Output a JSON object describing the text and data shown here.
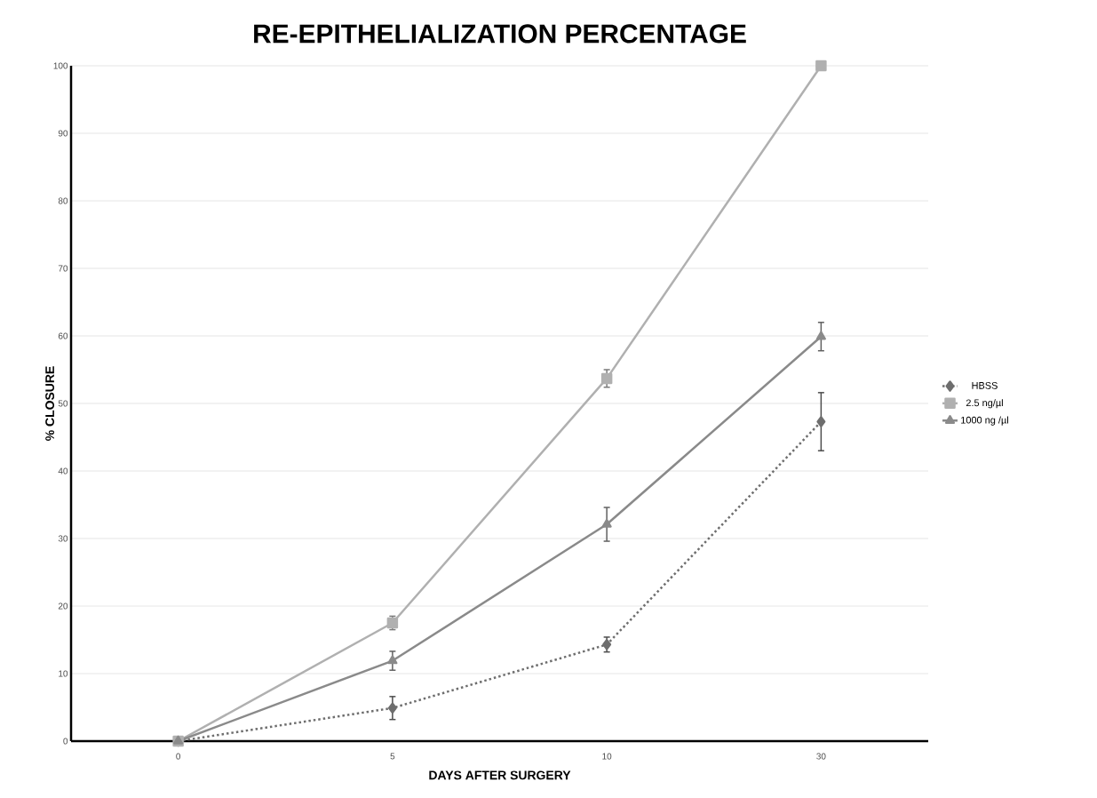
{
  "chart_data": {
    "type": "line",
    "title": "RE-EPITHELIALIZATION PERCENTAGE",
    "xlabel": "DAYS AFTER SURGERY",
    "ylabel": "% CLOSURE",
    "categories": [
      "0",
      "5",
      "10",
      "30"
    ],
    "ylim": [
      0,
      100
    ],
    "yticks": [
      0,
      10,
      20,
      30,
      40,
      50,
      60,
      70,
      80,
      90,
      100
    ],
    "grid": "y",
    "legend": "right",
    "series": [
      {
        "name": "HBSS",
        "color": "#6e6e6e",
        "marker": "diamond",
        "line_style": "dotted",
        "values": [
          0,
          4.9,
          14.3,
          47.3
        ],
        "errors": [
          null,
          1.7,
          1.1,
          4.3
        ]
      },
      {
        "name": "2.5 ng/µl",
        "color": "#b0b0b0",
        "marker": "square",
        "line_style": "solid",
        "values": [
          0,
          17.5,
          53.7,
          100
        ],
        "errors": [
          null,
          1.0,
          1.3,
          null
        ]
      },
      {
        "name": "1000 ng /µl",
        "color": "#8a8a8a",
        "marker": "triangle",
        "line_style": "solid",
        "values": [
          0,
          11.9,
          32.1,
          59.9
        ],
        "errors": [
          null,
          1.4,
          2.5,
          2.1
        ]
      }
    ]
  }
}
